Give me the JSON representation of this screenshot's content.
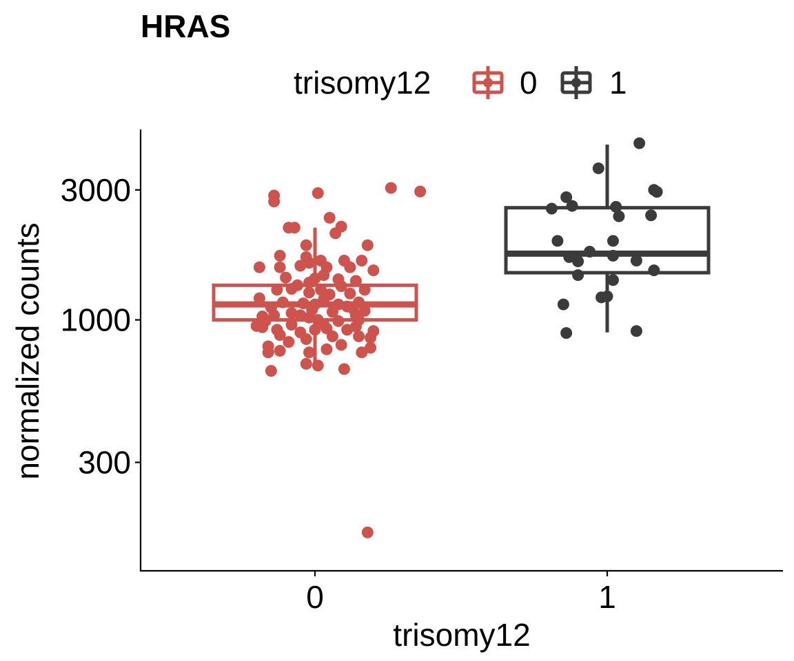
{
  "chart_data": {
    "type": "box",
    "title": "HRAS",
    "xlabel": "trisomy12",
    "ylabel": "normalized counts",
    "y_scale": "log10",
    "ylim": [
      120,
      5000
    ],
    "y_ticks": [
      300,
      1000,
      3000
    ],
    "y_tick_labels": [
      "300",
      "1000",
      "3000"
    ],
    "categories": [
      "0",
      "1"
    ],
    "legend": {
      "title": "trisomy12",
      "position": "top",
      "entries": [
        {
          "label": "0",
          "color": "#cd534c"
        },
        {
          "label": "1",
          "color": "#3b3b3b"
        }
      ]
    },
    "grid": false,
    "series": [
      {
        "name": "0",
        "color": "#cd534c",
        "box": {
          "whisker_low": 660,
          "q1": 1000,
          "median": 1140,
          "q3": 1340,
          "whisker_high": 2180
        },
        "points": [
          {
            "x": 0.26,
            "y": 3050
          },
          {
            "x": 0.36,
            "y": 2960
          },
          {
            "x": 0.01,
            "y": 2920
          },
          {
            "x": -0.14,
            "y": 2860
          },
          {
            "x": -0.14,
            "y": 2720
          },
          {
            "x": 0.05,
            "y": 2370
          },
          {
            "x": 0.09,
            "y": 2200
          },
          {
            "x": 0.07,
            "y": 2080
          },
          {
            "x": -0.09,
            "y": 2180
          },
          {
            "x": -0.07,
            "y": 2180
          },
          {
            "x": -0.03,
            "y": 1880
          },
          {
            "x": -0.12,
            "y": 1720
          },
          {
            "x": -0.03,
            "y": 1700
          },
          {
            "x": 0.18,
            "y": 1880
          },
          {
            "x": 0.02,
            "y": 1650
          },
          {
            "x": 0.1,
            "y": 1650
          },
          {
            "x": 0.16,
            "y": 1650
          },
          {
            "x": -0.19,
            "y": 1560
          },
          {
            "x": -0.12,
            "y": 1560
          },
          {
            "x": -0.02,
            "y": 1620
          },
          {
            "x": -0.05,
            "y": 1580
          },
          {
            "x": 0.04,
            "y": 1560
          },
          {
            "x": 0.12,
            "y": 1560
          },
          {
            "x": 0.2,
            "y": 1520
          },
          {
            "x": 0.03,
            "y": 1460
          },
          {
            "x": 0.0,
            "y": 1420
          },
          {
            "x": -0.1,
            "y": 1430
          },
          {
            "x": 0.08,
            "y": 1410
          },
          {
            "x": -0.02,
            "y": 1370
          },
          {
            "x": 0.14,
            "y": 1390
          },
          {
            "x": -0.06,
            "y": 1340
          },
          {
            "x": -0.13,
            "y": 1290
          },
          {
            "x": -0.08,
            "y": 1300
          },
          {
            "x": 0.09,
            "y": 1330
          },
          {
            "x": 0.02,
            "y": 1290
          },
          {
            "x": 0.17,
            "y": 1290
          },
          {
            "x": 0.12,
            "y": 1250
          },
          {
            "x": -0.02,
            "y": 1260
          },
          {
            "x": -0.19,
            "y": 1200
          },
          {
            "x": 0.05,
            "y": 1240
          },
          {
            "x": -0.11,
            "y": 1160
          },
          {
            "x": 0.0,
            "y": 1140
          },
          {
            "x": 0.08,
            "y": 1140
          },
          {
            "x": 0.11,
            "y": 1120
          },
          {
            "x": -0.04,
            "y": 1150
          },
          {
            "x": 0.03,
            "y": 1190
          },
          {
            "x": 0.15,
            "y": 1160
          },
          {
            "x": -0.15,
            "y": 1110
          },
          {
            "x": 0.13,
            "y": 1100
          },
          {
            "x": -0.01,
            "y": 1090
          },
          {
            "x": -0.18,
            "y": 1030
          },
          {
            "x": -0.08,
            "y": 1060
          },
          {
            "x": 0.06,
            "y": 1070
          },
          {
            "x": 0.17,
            "y": 1080
          },
          {
            "x": -0.14,
            "y": 1040
          },
          {
            "x": 0.14,
            "y": 1040
          },
          {
            "x": -0.05,
            "y": 1040
          },
          {
            "x": -0.02,
            "y": 1020
          },
          {
            "x": 0.01,
            "y": 1000
          },
          {
            "x": 0.15,
            "y": 1000
          },
          {
            "x": -0.17,
            "y": 990
          },
          {
            "x": 0.08,
            "y": 990
          },
          {
            "x": -0.08,
            "y": 960
          },
          {
            "x": 0.03,
            "y": 960
          },
          {
            "x": -0.2,
            "y": 950
          },
          {
            "x": 0.14,
            "y": 945
          },
          {
            "x": -0.18,
            "y": 940
          },
          {
            "x": 0.04,
            "y": 930
          },
          {
            "x": -0.13,
            "y": 920
          },
          {
            "x": 0.0,
            "y": 920
          },
          {
            "x": 0.11,
            "y": 920
          },
          {
            "x": -0.05,
            "y": 900
          },
          {
            "x": 0.2,
            "y": 910
          },
          {
            "x": -0.12,
            "y": 880
          },
          {
            "x": 0.06,
            "y": 870
          },
          {
            "x": -0.03,
            "y": 850
          },
          {
            "x": 0.15,
            "y": 870
          },
          {
            "x": 0.19,
            "y": 860
          },
          {
            "x": -0.09,
            "y": 830
          },
          {
            "x": -0.16,
            "y": 800
          },
          {
            "x": 0.09,
            "y": 810
          },
          {
            "x": 0.19,
            "y": 790
          },
          {
            "x": -0.12,
            "y": 770
          },
          {
            "x": 0.04,
            "y": 780
          },
          {
            "x": -0.02,
            "y": 760
          },
          {
            "x": 0.16,
            "y": 760
          },
          {
            "x": -0.16,
            "y": 760
          },
          {
            "x": -0.03,
            "y": 690
          },
          {
            "x": 0.01,
            "y": 680
          },
          {
            "x": -0.15,
            "y": 650
          },
          {
            "x": 0.1,
            "y": 660
          },
          {
            "x": 0.18,
            "y": 166
          }
        ]
      },
      {
        "name": "1",
        "color": "#3b3b3b",
        "box": {
          "whisker_low": 900,
          "q1": 1490,
          "median": 1750,
          "q3": 2580,
          "whisker_high": 4400
        },
        "points": [
          {
            "x": 1.11,
            "y": 4450
          },
          {
            "x": 0.97,
            "y": 3600
          },
          {
            "x": 1.16,
            "y": 3000
          },
          {
            "x": 1.17,
            "y": 2950
          },
          {
            "x": 0.86,
            "y": 2820
          },
          {
            "x": 0.88,
            "y": 2620
          },
          {
            "x": 0.81,
            "y": 2560
          },
          {
            "x": 1.03,
            "y": 2600
          },
          {
            "x": 1.04,
            "y": 2400
          },
          {
            "x": 1.15,
            "y": 2420
          },
          {
            "x": 0.83,
            "y": 1950
          },
          {
            "x": 1.02,
            "y": 1950
          },
          {
            "x": 0.94,
            "y": 1780
          },
          {
            "x": 1.02,
            "y": 1720
          },
          {
            "x": 0.87,
            "y": 1700
          },
          {
            "x": 0.9,
            "y": 1640
          },
          {
            "x": 1.1,
            "y": 1650
          },
          {
            "x": 1.16,
            "y": 1520
          },
          {
            "x": 0.9,
            "y": 1460
          },
          {
            "x": 1.02,
            "y": 1400
          },
          {
            "x": 0.98,
            "y": 1210
          },
          {
            "x": 1.0,
            "y": 1220
          },
          {
            "x": 0.85,
            "y": 1140
          },
          {
            "x": 1.1,
            "y": 910
          },
          {
            "x": 0.86,
            "y": 895
          }
        ]
      }
    ]
  }
}
